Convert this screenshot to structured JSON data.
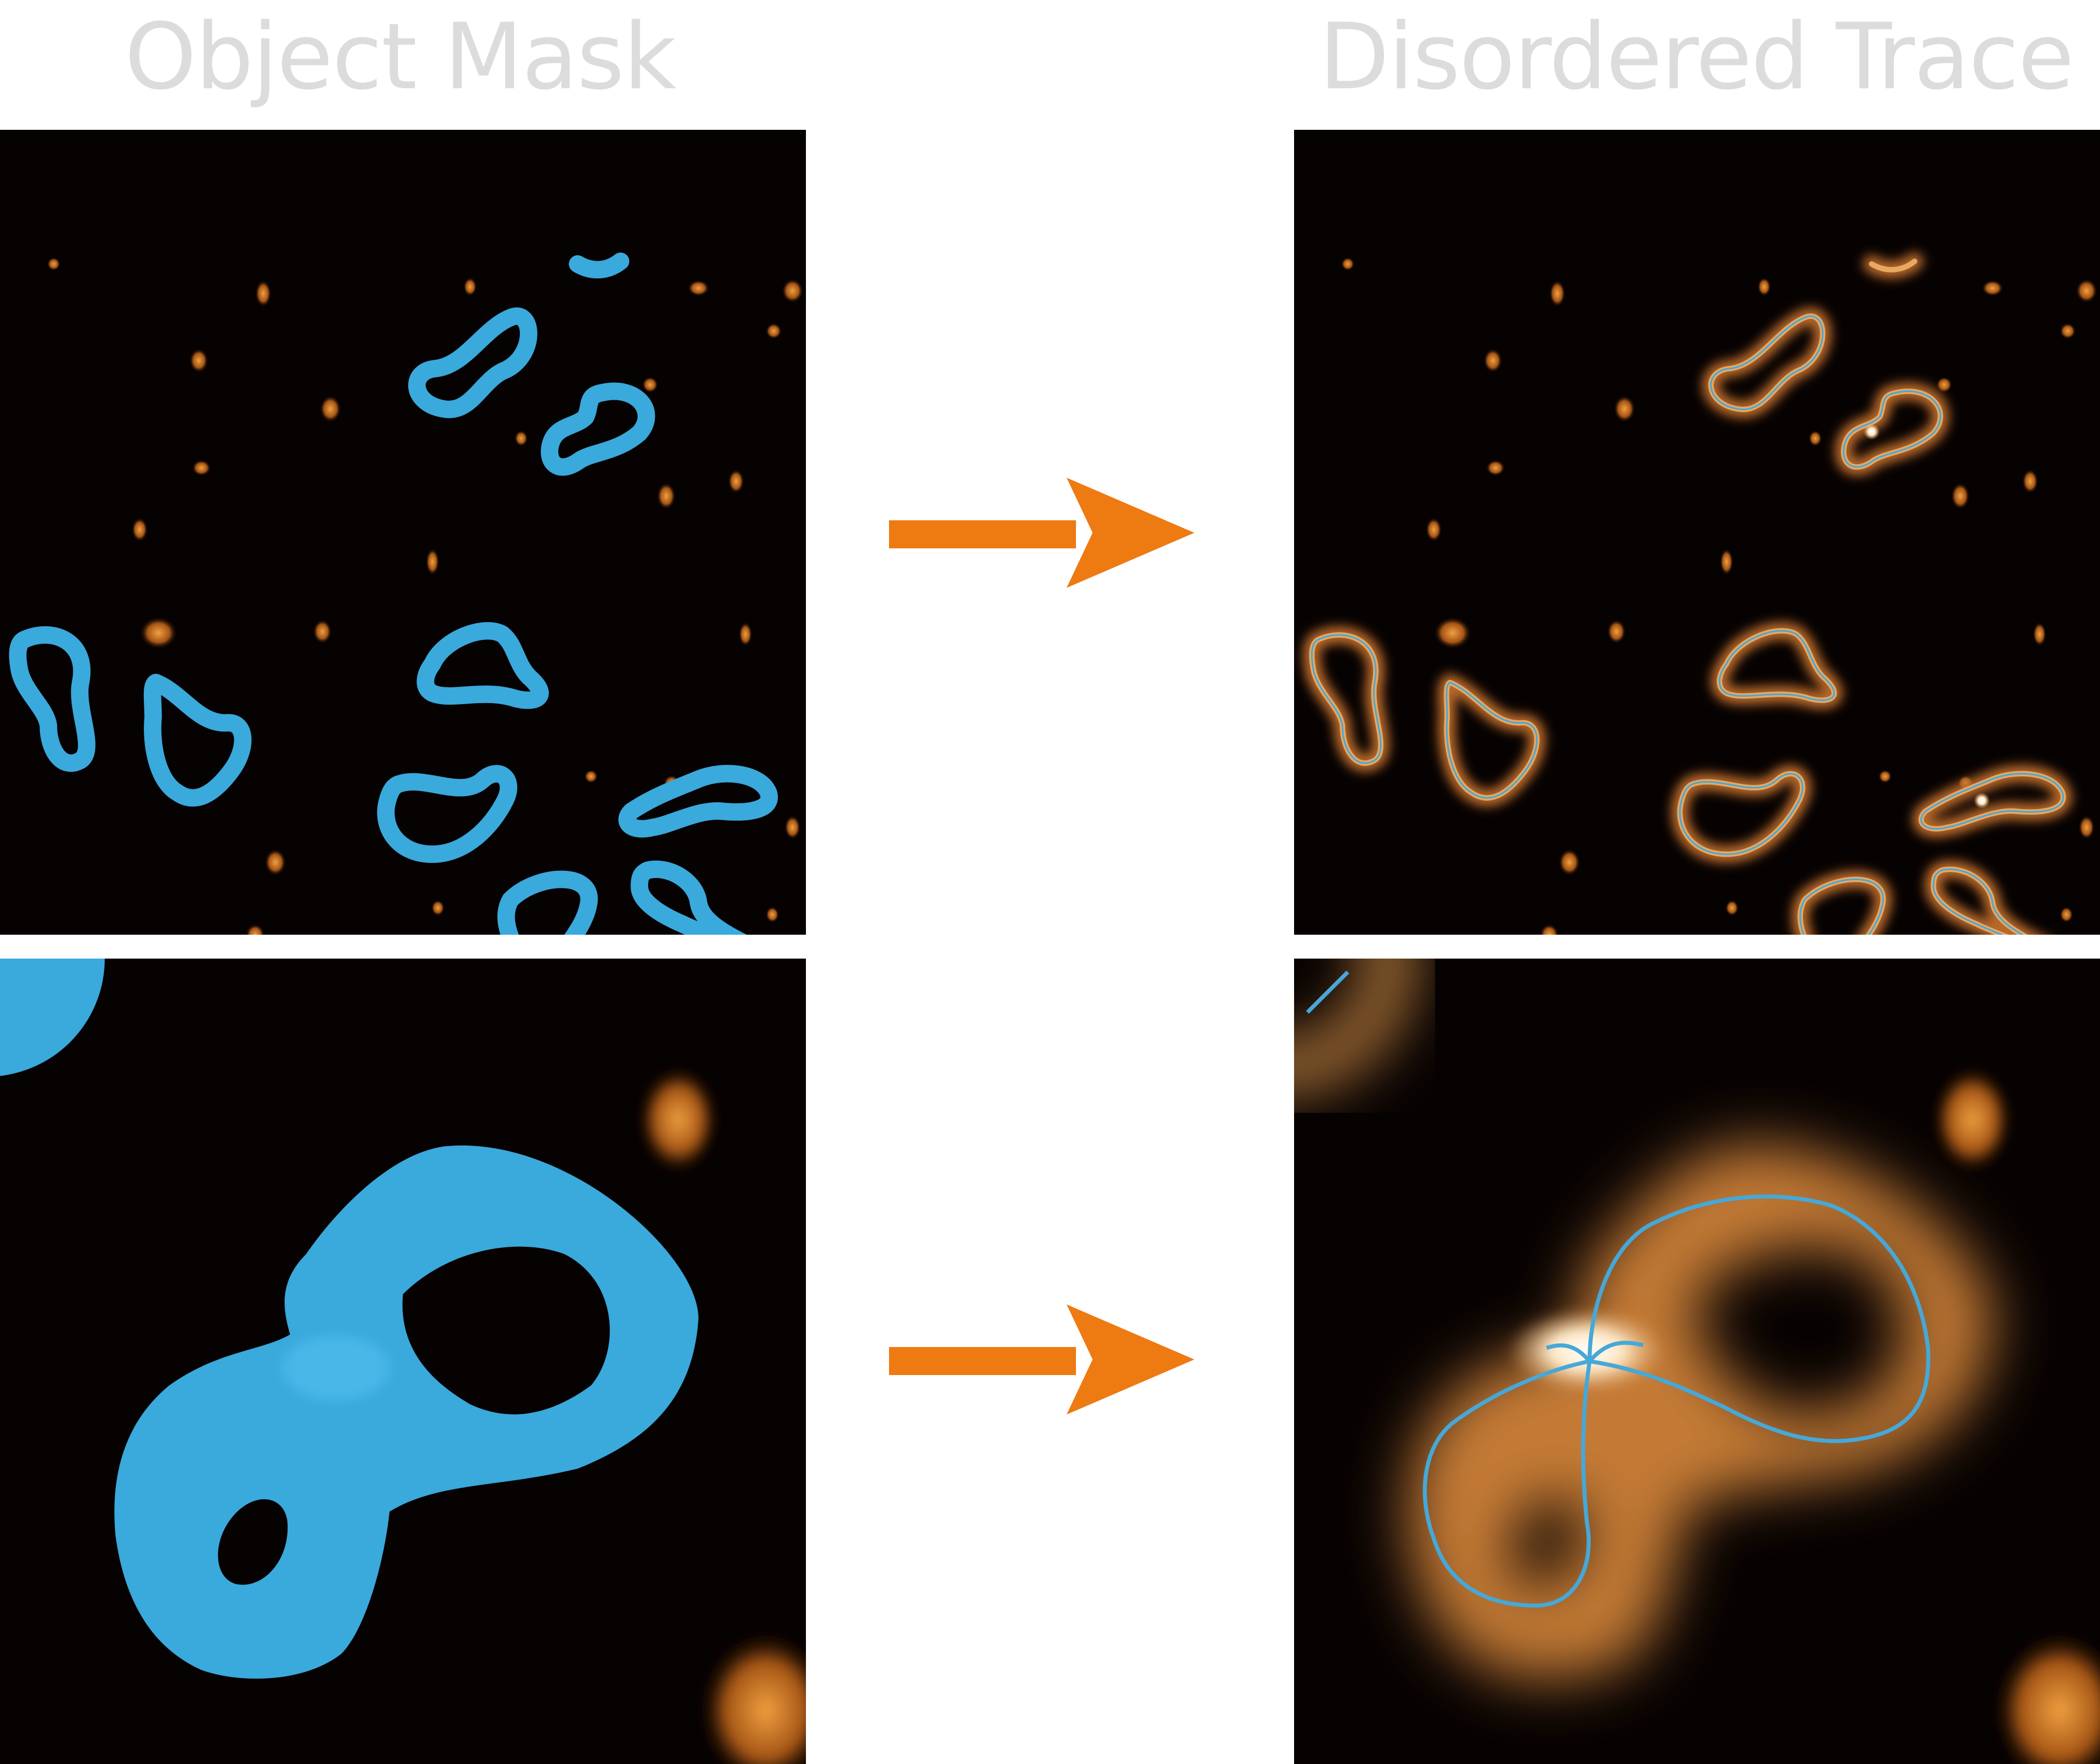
{
  "titles": {
    "left": "Object Mask",
    "right": "Disordered Trace"
  },
  "colors": {
    "title_text": "#dcdcdc",
    "arrow": "#ee7a12",
    "mask": "#3aa9dc",
    "trace_line": "#46a8d8",
    "molecule": "#c98a45",
    "background": "#070202"
  },
  "icons": {
    "arrows": "right-arrow-icon"
  }
}
